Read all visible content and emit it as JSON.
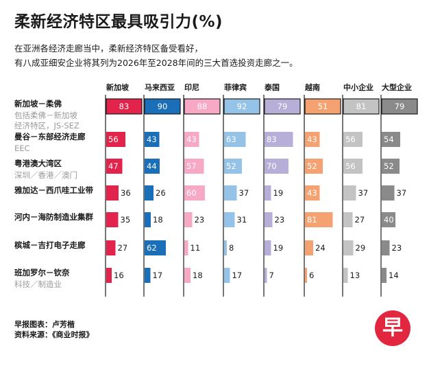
{
  "title": "柔新经济特区最具吸引力(%)",
  "subtitle_line1": "在亚洲各经济走廊当中，柔新经济特区备受看好，",
  "subtitle_line2": "有八成亚细安企业将其列为2026年至2028年间的三大首选投资走廊之一。",
  "footer_line1": "早报图表：卢芳楷",
  "footer_line2": "资料来源：《商业时报》",
  "logo_text": "早",
  "chart_data": {
    "type": "bar",
    "ylim": [
      0,
      100
    ],
    "columns": [
      "新加坡",
      "马来西亚",
      "印尼",
      "菲律宾",
      "泰国",
      "越南",
      "中小企业",
      "大型企业"
    ],
    "colors": [
      "#e2234b",
      "#1a6fb8",
      "#f7a8c4",
      "#95c3e8",
      "#b8afd9",
      "#f4a271",
      "#c3c3c3",
      "#8a8a8a"
    ],
    "header_colors": [
      "#e2234b",
      "#1a6fb8",
      "#f7a8c4",
      "#95c3e8",
      "#b8afd9",
      "#f4a271",
      "#c3c3c3",
      "#8a8a8a"
    ],
    "rows": [
      {
        "label": "新加坡－柔佛",
        "sublabel": "包括柔佛－新加坡\n经济特区，JS-SEZ",
        "values": [
          83,
          90,
          88,
          92,
          79,
          51,
          81,
          79
        ],
        "highlight": true
      },
      {
        "label": "曼谷－东部经济走廊",
        "sublabel": "EEC",
        "values": [
          56,
          43,
          43,
          63,
          83,
          43,
          56,
          54
        ]
      },
      {
        "label": "粤港澳大湾区",
        "sublabel": "深圳／香港／澳门",
        "values": [
          47,
          44,
          57,
          52,
          70,
          52,
          56,
          52
        ]
      },
      {
        "label": "雅加达－西爪哇工业带",
        "sublabel": "",
        "values": [
          36,
          26,
          60,
          37,
          19,
          43,
          37,
          37
        ]
      },
      {
        "label": "河内－海防制造业集群",
        "sublabel": "",
        "values": [
          35,
          18,
          23,
          31,
          23,
          81,
          27,
          40
        ]
      },
      {
        "label": "槟城－吉打电子走廊",
        "sublabel": "",
        "values": [
          27,
          62,
          11,
          8,
          19,
          24,
          29,
          23
        ]
      },
      {
        "label": "班加罗尔－钦奈",
        "sublabel": "科技／制造业",
        "values": [
          16,
          17,
          18,
          17,
          7,
          6,
          13,
          14
        ]
      }
    ]
  }
}
